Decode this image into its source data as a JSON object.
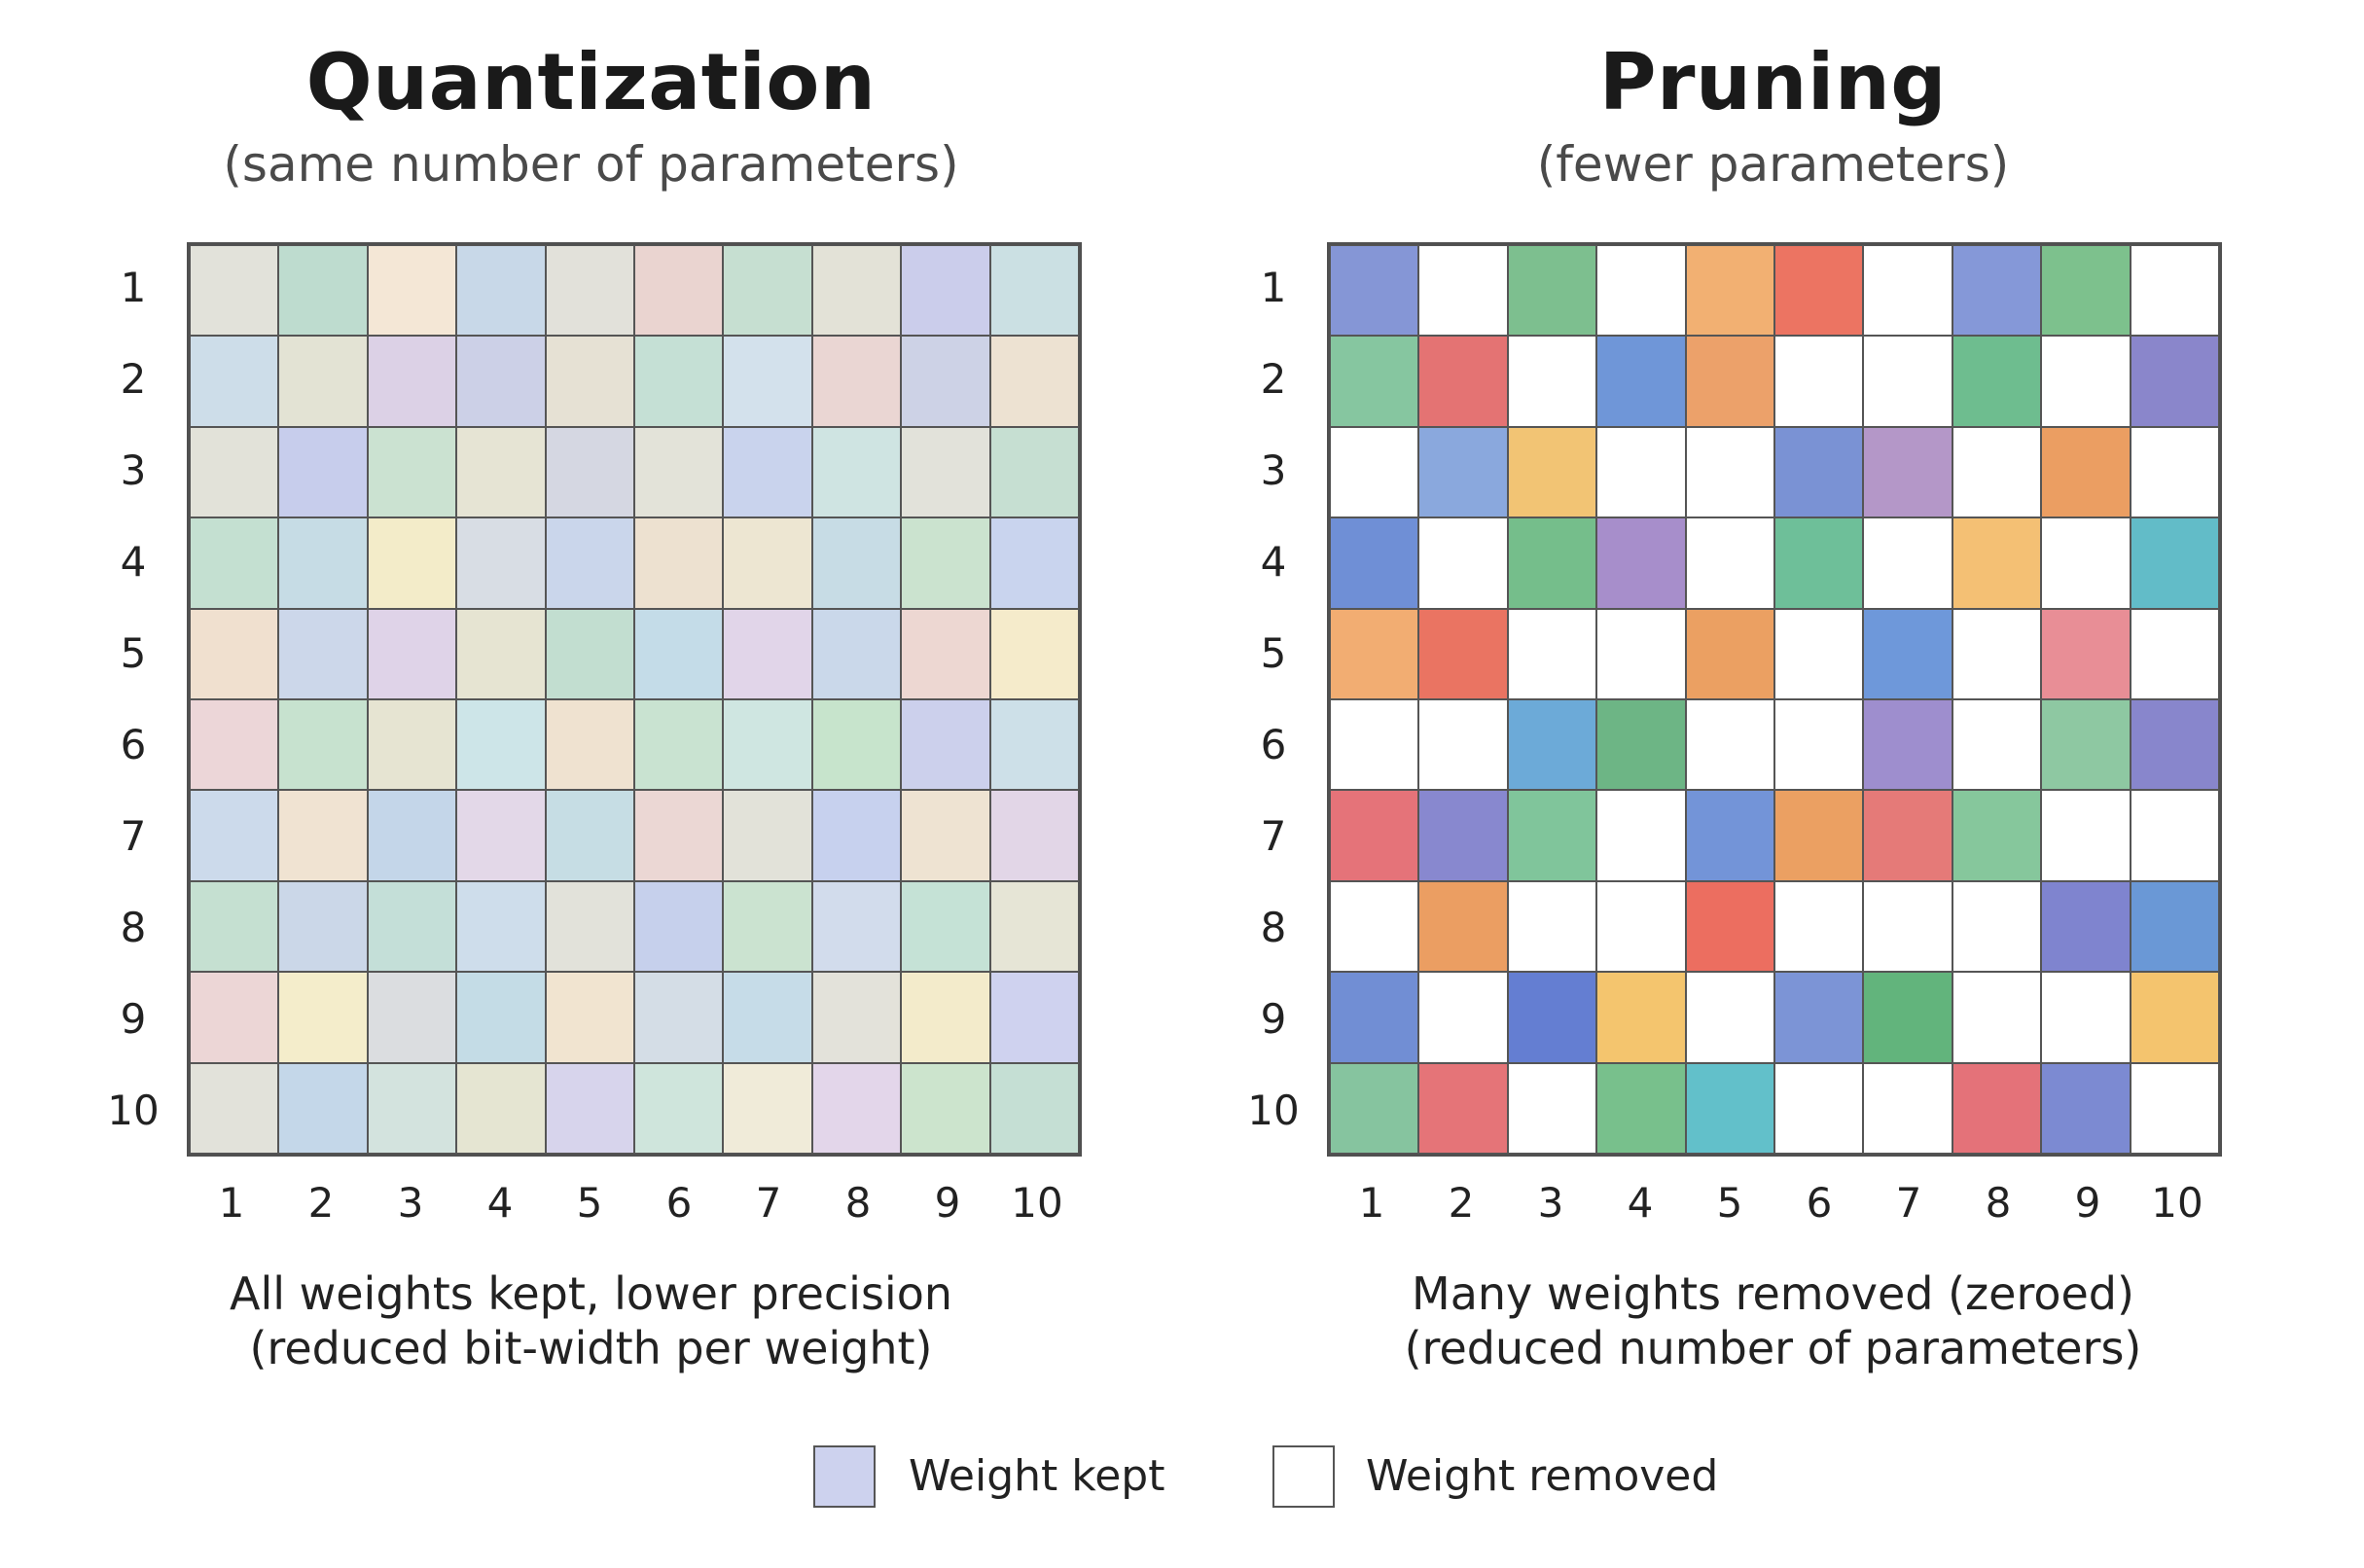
{
  "quantization": {
    "title": "Quantization",
    "subtitle": "(same number of parameters)",
    "row_labels": [
      "1",
      "2",
      "3",
      "4",
      "5",
      "6",
      "7",
      "8",
      "9",
      "10"
    ],
    "col_labels": [
      "1",
      "2",
      "3",
      "4",
      "5",
      "6",
      "7",
      "8",
      "9",
      "10"
    ],
    "caption_line1": "All weights kept, lower precision",
    "caption_line2": "(reduced bit-width per weight)",
    "cells": [
      [
        "#e2e2da",
        "#bedccf",
        "#f4e7d6",
        "#c8d8e8",
        "#e2e1da",
        "#ead4d0",
        "#c6dfd1",
        "#e3e2d7",
        "#cbcdeb",
        "#cbe0e3"
      ],
      [
        "#cddde9",
        "#e3e3d4",
        "#dcd1e6",
        "#ccd0e7",
        "#e6e1d4",
        "#c5e0d5",
        "#d3e1ec",
        "#ead6d3",
        "#cdd2e6",
        "#ede2d2"
      ],
      [
        "#e2e2d9",
        "#c7cdec",
        "#cbe2d1",
        "#e6e4d4",
        "#d5d7e2",
        "#e3e3d9",
        "#c9d3ed",
        "#cfe4e2",
        "#e2e2da",
        "#c6dfd2"
      ],
      [
        "#c4e0d1",
        "#c6dce5",
        "#f3ecc9",
        "#d8dde4",
        "#cad6eb",
        "#ede1d0",
        "#ede6d2",
        "#c7dce5",
        "#cbe3cf",
        "#c9d4ee"
      ],
      [
        "#f0e0cf",
        "#ccd7ea",
        "#dfd3e8",
        "#e6e4d2",
        "#c2ded0",
        "#c4dce8",
        "#e1d5e9",
        "#cad8ea",
        "#edd7d2",
        "#f5ebcb"
      ],
      [
        "#ecd6d8",
        "#c7e2cf",
        "#e6e4d2",
        "#cde5e8",
        "#efe2d0",
        "#c9e3d1",
        "#cfe6e1",
        "#c7e4cc",
        "#ccd0ec",
        "#cde0e8"
      ],
      [
        "#ccdaeb",
        "#f0e3d2",
        "#c4d6e9",
        "#e3d8e8",
        "#c6dde4",
        "#ebd7d4",
        "#e2e2d9",
        "#c7d1ee",
        "#eee3d2",
        "#e2d6e7"
      ],
      [
        "#c5e0d1",
        "#cbd7e8",
        "#c4dfd8",
        "#ceddeb",
        "#e2e2da",
        "#c6d0ec",
        "#cbe3d0",
        "#d2dcec",
        "#c5e2d6",
        "#e6e5d6"
      ],
      [
        "#ecd6d6",
        "#f4edcb",
        "#dbdde0",
        "#c4dce6",
        "#f1e4d0",
        "#d4dde6",
        "#c6dce8",
        "#e3e2da",
        "#f3ebcb",
        "#cfd2ef"
      ],
      [
        "#e2e2da",
        "#c4d7e9",
        "#d3e3de",
        "#e5e5d2",
        "#d7d4ec",
        "#cfe5dc",
        "#f0ebd9",
        "#e3d6ea",
        "#cce4cd",
        "#c5dfd4"
      ]
    ]
  },
  "pruning": {
    "title": "Pruning",
    "subtitle": "(fewer parameters)",
    "row_labels": [
      "1",
      "2",
      "3",
      "4",
      "5",
      "6",
      "7",
      "8",
      "9",
      "10"
    ],
    "col_labels": [
      "1",
      "2",
      "3",
      "4",
      "5",
      "6",
      "7",
      "8",
      "9",
      "10"
    ],
    "caption_line1": "Many weights removed (zeroed)",
    "caption_line2": "(reduced number of parameters)",
    "cells": [
      [
        "#8596d6",
        "#ffffff",
        "#7dbf8f",
        "#ffffff",
        "#f2b072",
        "#ec7462",
        "#ffffff",
        "#8598d8",
        "#7dc18d",
        "#ffffff"
      ],
      [
        "#86c6a0",
        "#e47373",
        "#ffffff",
        "#6f96d8",
        "#eca16a",
        "#ffffff",
        "#ffffff",
        "#6ebd8f",
        "#ffffff",
        "#8a86cb"
      ],
      [
        "#ffffff",
        "#8aa8dd",
        "#f2c474",
        "#ffffff",
        "#ffffff",
        "#7a92d4",
        "#b497c8",
        "#ffffff",
        "#eb9e62",
        "#ffffff"
      ],
      [
        "#6f8fd6",
        "#ffffff",
        "#75be8b",
        "#a78ecb",
        "#ffffff",
        "#6ebf99",
        "#ffffff",
        "#f4c074",
        "#ffffff",
        "#62bcc8"
      ],
      [
        "#f2ad72",
        "#ea7462",
        "#ffffff",
        "#ffffff",
        "#eba062",
        "#ffffff",
        "#6e98da",
        "#ffffff",
        "#e88e96",
        "#ffffff"
      ],
      [
        "#ffffff",
        "#ffffff",
        "#6caad8",
        "#6db585",
        "#ffffff",
        "#ffffff",
        "#9e8ece",
        "#ffffff",
        "#8ec8a2",
        "#8886cc"
      ],
      [
        "#e57379",
        "#8888cf",
        "#80c59b",
        "#ffffff",
        "#7394d8",
        "#eba062",
        "#e57a78",
        "#86c79c",
        "#ffffff",
        "#ffffff"
      ],
      [
        "#ffffff",
        "#eb9e62",
        "#ffffff",
        "#ffffff",
        "#ec6e60",
        "#ffffff",
        "#ffffff",
        "#ffffff",
        "#7f84cf",
        "#6a98d6"
      ],
      [
        "#718ed4",
        "#ffffff",
        "#647ed2",
        "#f4c56e",
        "#ffffff",
        "#7c94d6",
        "#62b47c",
        "#ffffff",
        "#ffffff",
        "#f4c46e"
      ],
      [
        "#86c49f",
        "#e57478",
        "#ffffff",
        "#78c08c",
        "#62c0ca",
        "#ffffff",
        "#ffffff",
        "#e47279",
        "#7c8ad2",
        "#ffffff"
      ]
    ]
  },
  "legend": {
    "kept_label": "Weight kept",
    "kept_color": "#cdd2ee",
    "removed_label": "Weight removed",
    "removed_color": "#ffffff"
  }
}
